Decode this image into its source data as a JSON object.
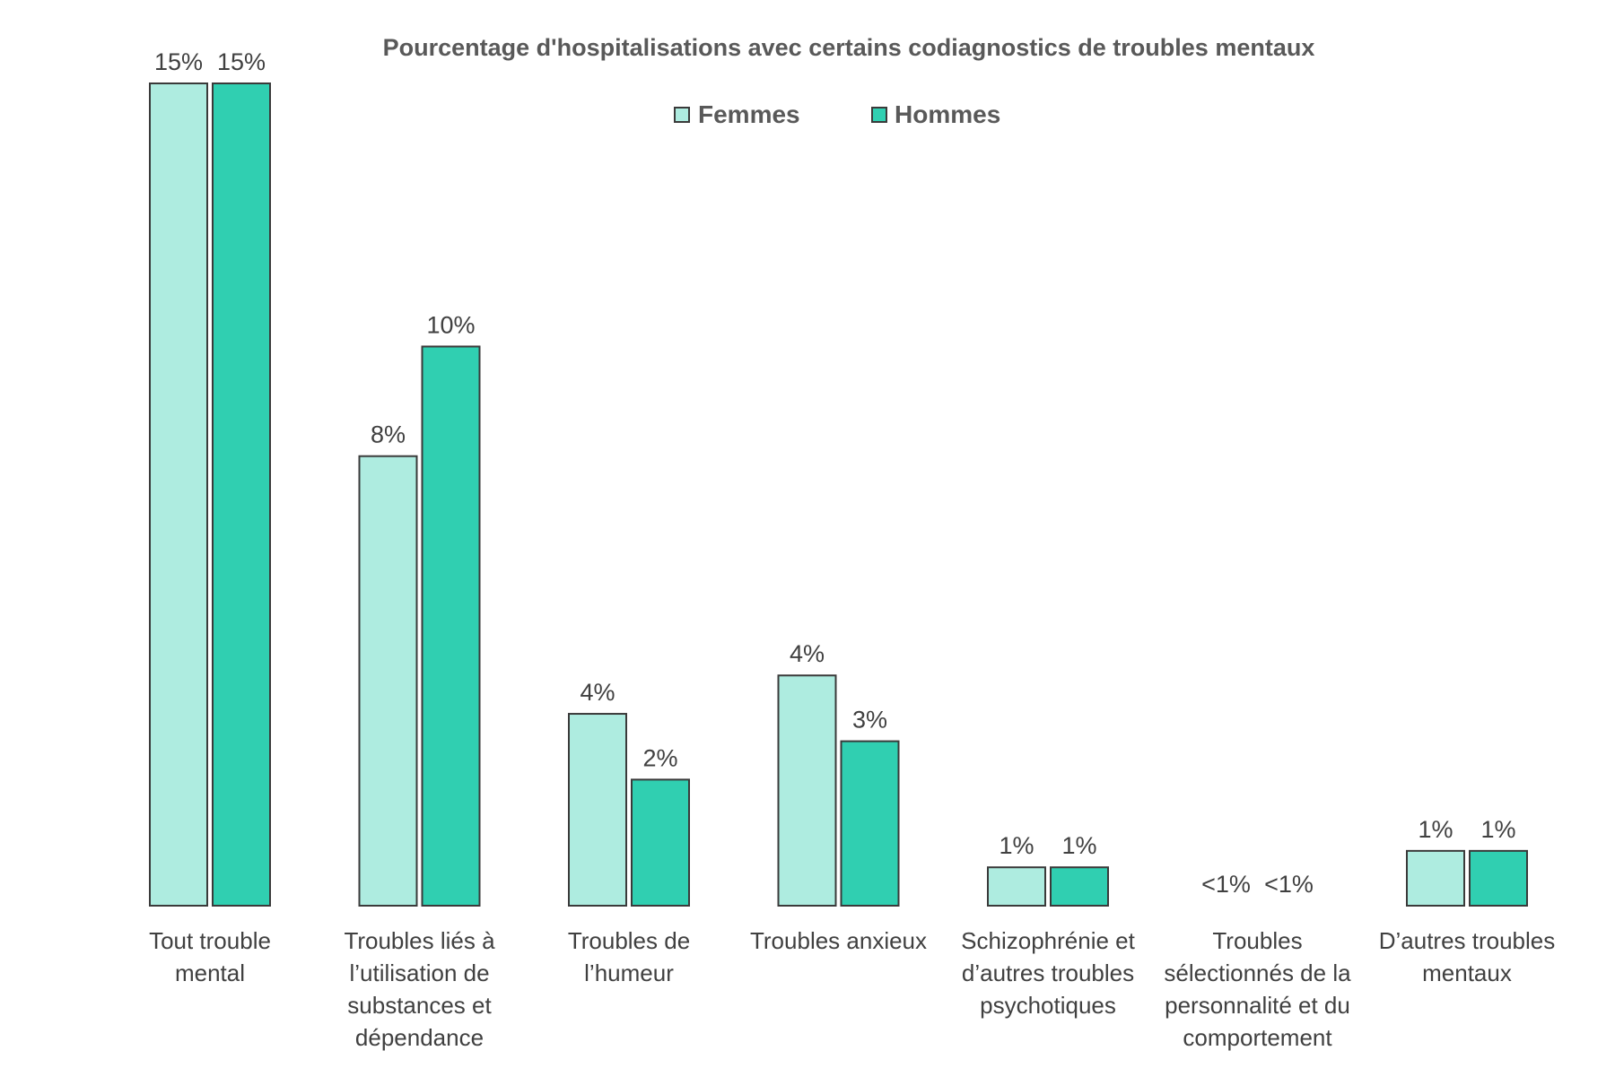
{
  "colors": {
    "femmes": "#aeece0",
    "hommes": "#30cfb1"
  },
  "chart_data": {
    "type": "bar",
    "title": "Pourcentage d'hospitalisations avec certains codiagnostics de troubles mentaux",
    "categories": [
      [
        "Tout trouble",
        "mental"
      ],
      [
        "Troubles liés à",
        "l’utilisation de",
        "substances et",
        "dépendance"
      ],
      [
        "Troubles de",
        "l’humeur"
      ],
      [
        "Troubles anxieux"
      ],
      [
        "Schizophrénie et",
        "d’autres troubles",
        "psychotiques"
      ],
      [
        "Troubles",
        "sélectionnés de la",
        "personnalité et du",
        "comportement"
      ],
      [
        "D’autres troubles",
        "mentaux"
      ]
    ],
    "series": [
      {
        "name": "Femmes",
        "values": [
          15,
          8.2,
          3.5,
          4.2,
          0.7,
          0,
          1.0
        ],
        "labels": [
          "15%",
          "8%",
          "4%",
          "4%",
          "1%",
          "<1%",
          "1%"
        ]
      },
      {
        "name": "Hommes",
        "values": [
          15,
          10.2,
          2.3,
          3.0,
          0.7,
          0,
          1.0
        ],
        "labels": [
          "15%",
          "10%",
          "2%",
          "3%",
          "1%",
          "<1%",
          "1%"
        ]
      }
    ],
    "ylim": [
      0,
      15
    ],
    "grid": false,
    "legend": "top-center"
  }
}
